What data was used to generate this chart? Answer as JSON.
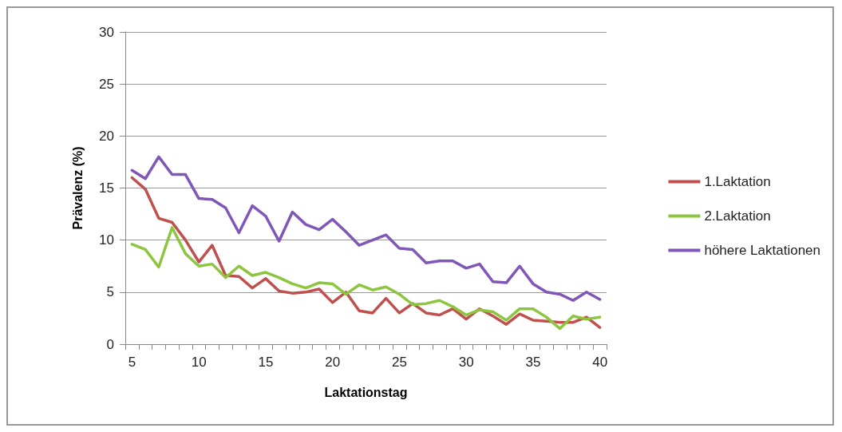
{
  "chart_data": {
    "type": "line",
    "xlabel": "Laktationstag",
    "ylabel": "Prävalenz (%)",
    "categories": [
      "5",
      null,
      null,
      null,
      null,
      "10",
      null,
      null,
      null,
      null,
      "15",
      null,
      null,
      null,
      null,
      "20",
      null,
      null,
      null,
      null,
      "25",
      null,
      null,
      null,
      null,
      "30",
      null,
      null,
      null,
      null,
      "35",
      null,
      null,
      null,
      null,
      "40"
    ],
    "ylim": [
      0,
      30
    ],
    "yticks": [
      0,
      5,
      10,
      15,
      20,
      25,
      30
    ],
    "grid": "y",
    "legend": "right",
    "marker": "none",
    "line_style": "solid",
    "series": [
      {
        "name": "1.Laktation",
        "color": "#c0504d",
        "values": [
          16,
          14.9,
          12.1,
          11.7,
          10,
          7.9,
          9.5,
          6.6,
          6.5,
          5.4,
          6.3,
          5.1,
          4.9,
          5,
          5.3,
          4,
          5,
          3.2,
          3,
          4.4,
          3,
          3.9,
          3,
          2.8,
          3.4,
          2.4,
          3.4,
          2.7,
          1.9,
          2.9,
          2.3,
          2.2,
          2.1,
          2.1,
          2.6,
          1.6
        ]
      },
      {
        "name": "2.Laktation",
        "color": "#8cc63f",
        "values": [
          9.6,
          9.1,
          7.4,
          11.2,
          8.7,
          7.5,
          7.7,
          6.4,
          7.5,
          6.6,
          6.9,
          6.4,
          5.8,
          5.4,
          5.9,
          5.8,
          4.8,
          5.7,
          5.2,
          5.5,
          4.8,
          3.8,
          3.9,
          4.2,
          3.6,
          2.8,
          3.3,
          3.1,
          2.3,
          3.4,
          3.4,
          2.6,
          1.5,
          2.7,
          2.4,
          2.6
        ]
      },
      {
        "name": "höhere Laktationen",
        "color": "#7e57b8",
        "values": [
          16.7,
          15.9,
          18,
          16.3,
          16.3,
          14,
          13.9,
          13.1,
          10.7,
          13.3,
          12.3,
          9.9,
          12.7,
          11.5,
          11,
          12,
          10.8,
          9.5,
          10,
          10.5,
          9.2,
          9.1,
          7.8,
          8,
          8,
          7.3,
          7.7,
          6,
          5.9,
          7.5,
          5.8,
          5,
          4.8,
          4.2,
          5,
          4.3
        ]
      }
    ]
  }
}
